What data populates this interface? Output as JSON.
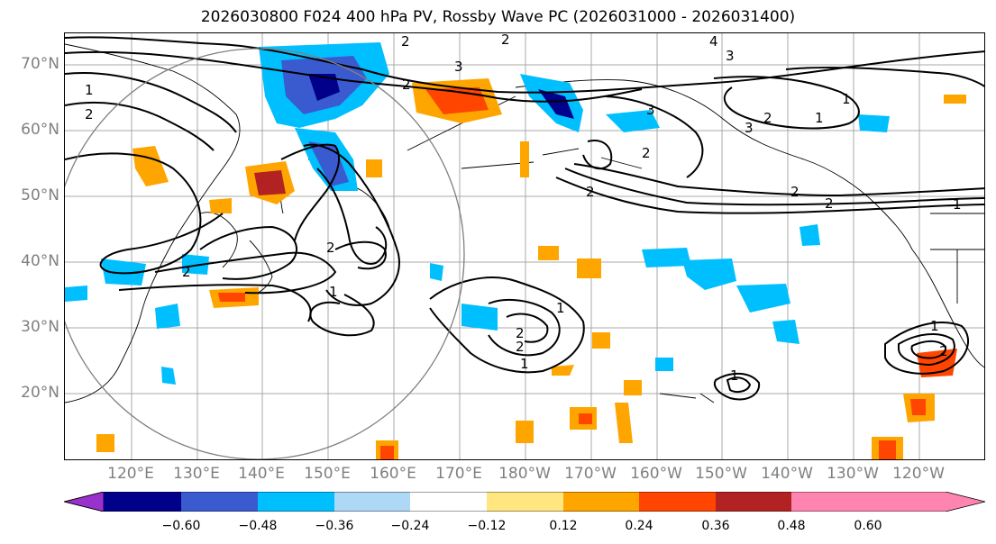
{
  "title": "2026030800 F024 400 hPa PV, Rossby Wave PC (2026031000 - 2026031400)",
  "lat_labels": [
    "70°N",
    "60°N",
    "50°N",
    "40°N",
    "30°N",
    "20°N"
  ],
  "lon_labels": [
    "120°E",
    "130°E",
    "140°E",
    "150°E",
    "160°E",
    "170°E",
    "180°W",
    "170°W",
    "160°W",
    "150°W",
    "140°W",
    "130°W",
    "120°W"
  ],
  "colorbar": {
    "labels": [
      "−0.60",
      "−0.48",
      "−0.36",
      "−0.24",
      "−0.12",
      "0.12",
      "0.24",
      "0.36",
      "0.48",
      "0.60"
    ],
    "colors": [
      "#9932CC",
      "#00008B",
      "#3A5BCF",
      "#00BFFF",
      "#ADD8F6",
      "#FFFFFF",
      "#FFE680",
      "#FFA500",
      "#FF4500",
      "#B22222",
      "#FF85B0"
    ]
  },
  "contour_labels": [
    "2",
    "2",
    "4",
    "3",
    "1",
    "2",
    "2",
    "3",
    "1",
    "2",
    "2",
    "2",
    "2",
    "2",
    "2",
    "1",
    "2",
    "2",
    "1",
    "1",
    "1",
    "2",
    "1",
    "1",
    "2",
    "3",
    "3",
    "1"
  ],
  "map_features": {
    "projection": "equirectangular",
    "lon_range": "110°E–115°W",
    "lat_range": "10°N–75°N",
    "circle_region": "Japan / western Pacific"
  }
}
